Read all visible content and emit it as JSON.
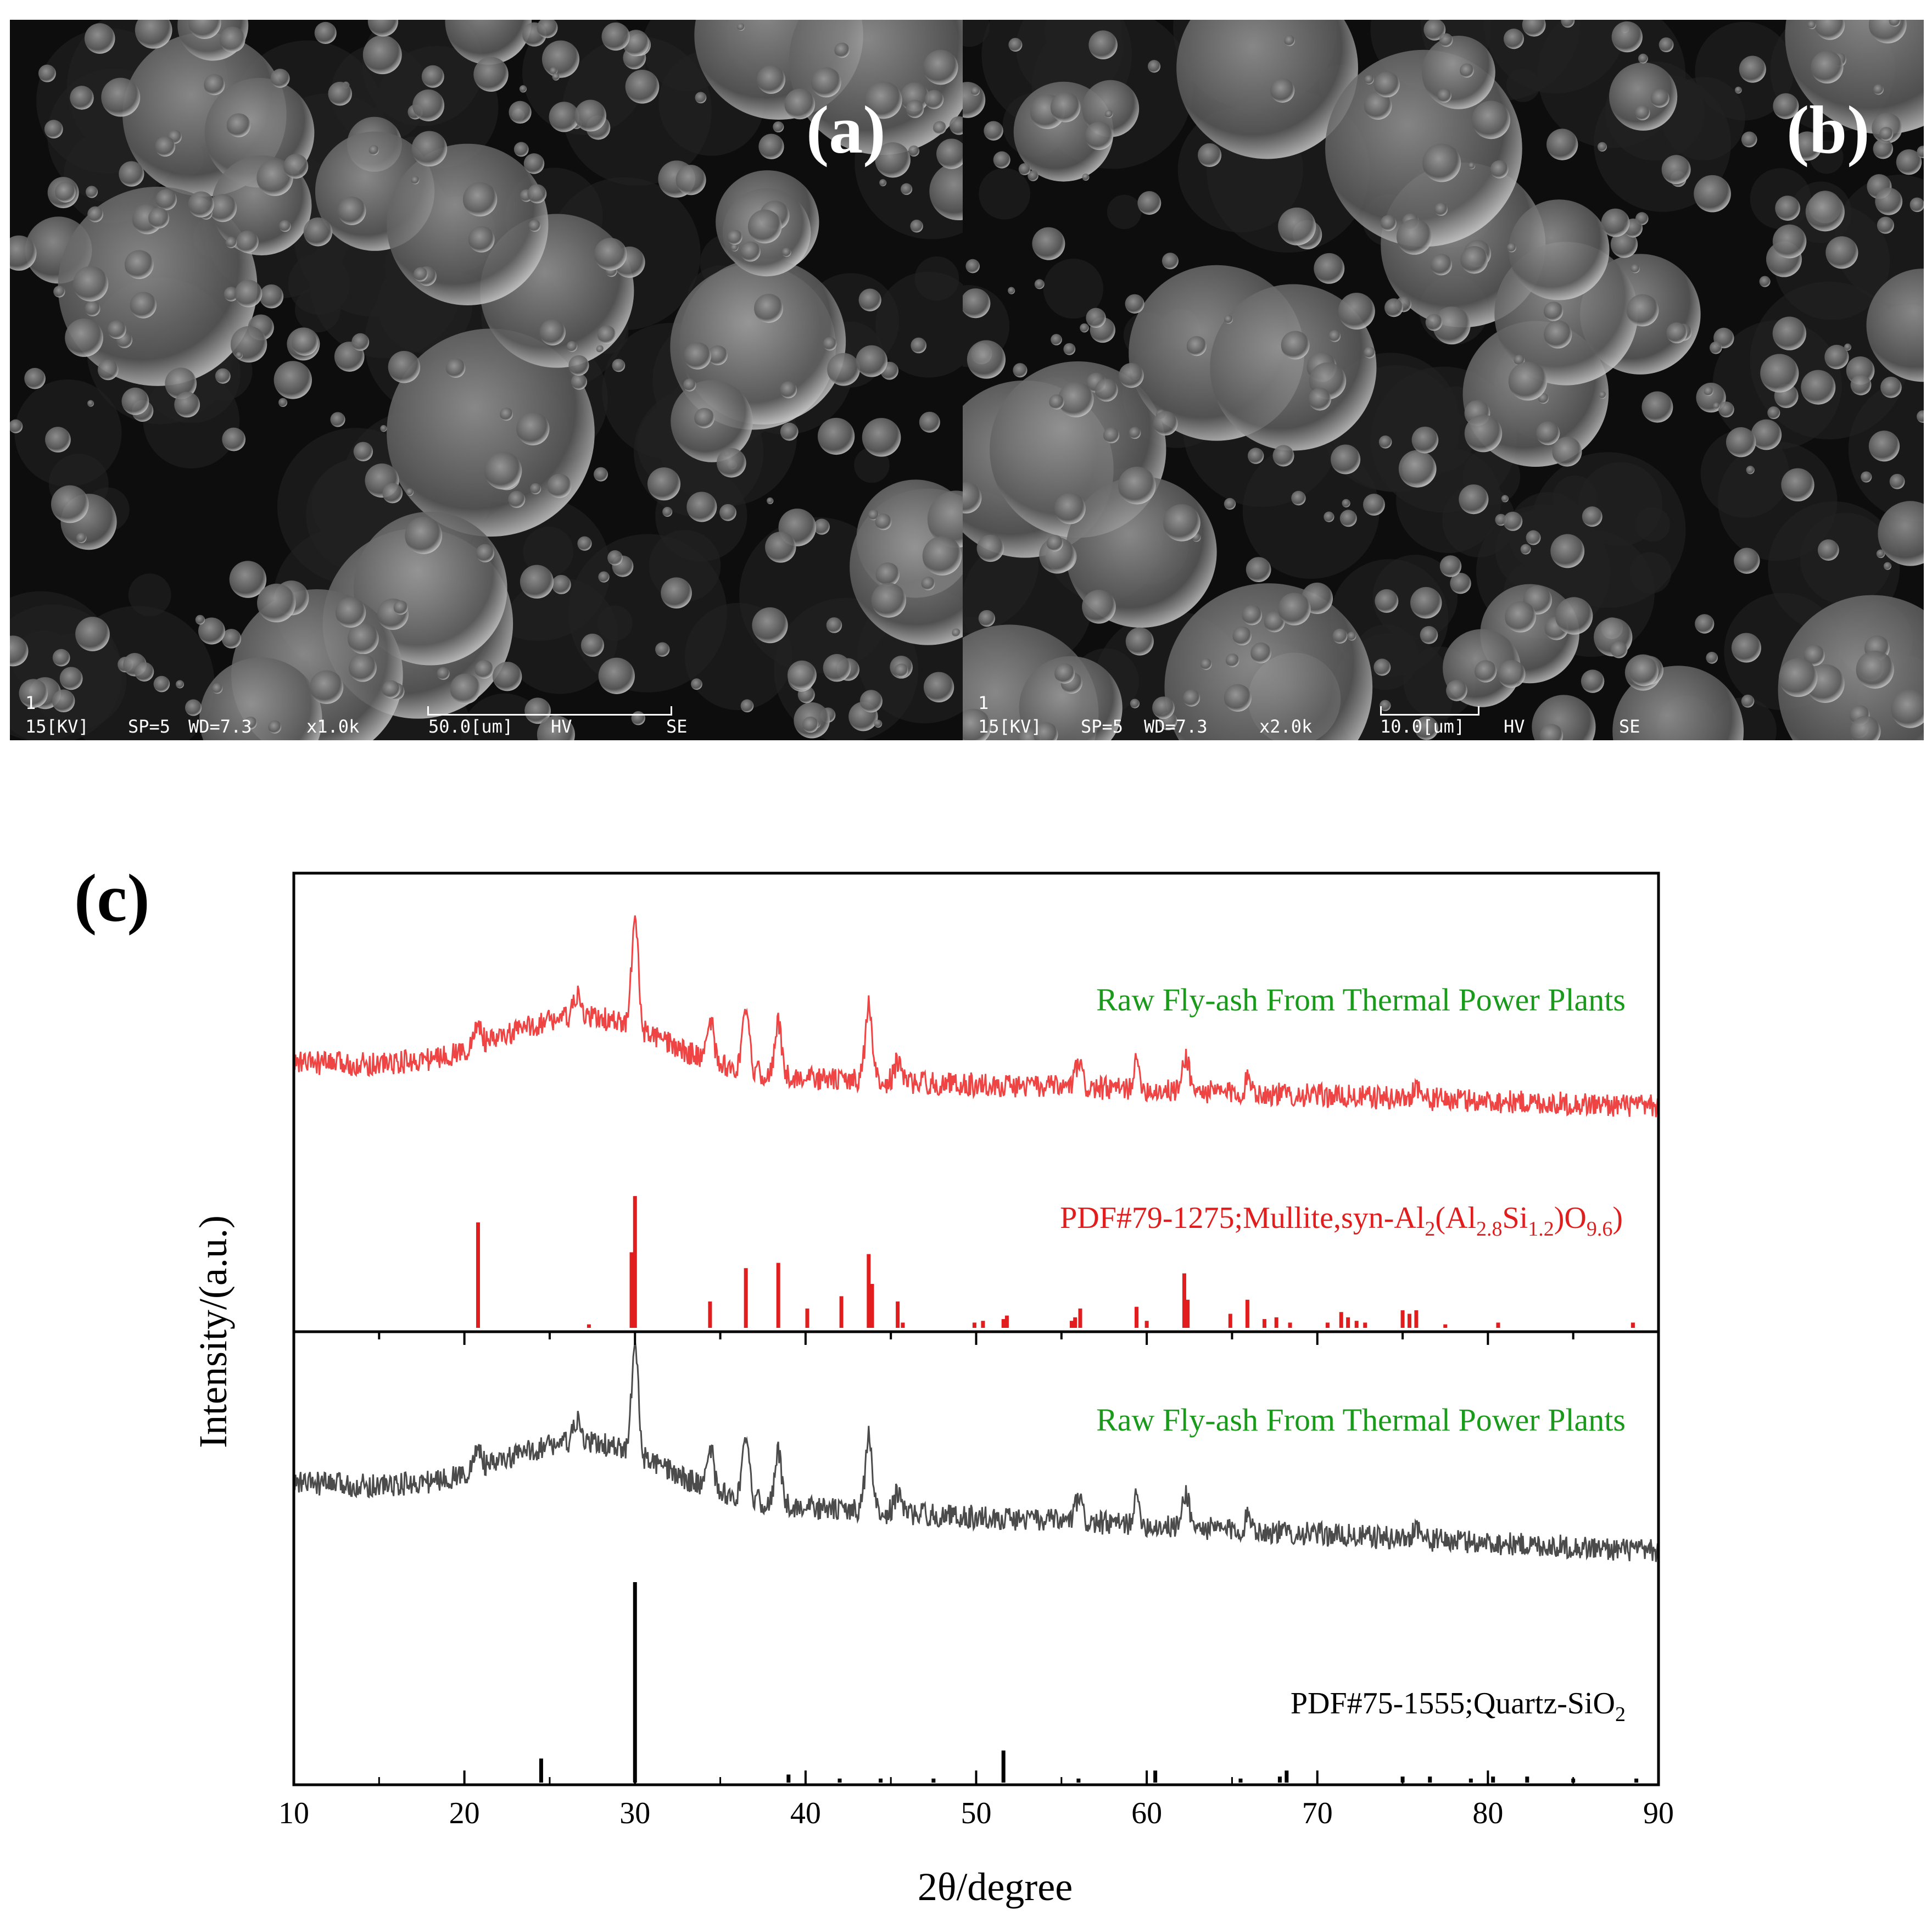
{
  "sem_panels": [
    {
      "label": "(a)",
      "index": "1",
      "voltage": "15[KV]",
      "spot": "SP=5",
      "wd": "WD=7.3",
      "mag": "x1.0k",
      "scale": "50.0[um]",
      "mode": "HV",
      "detector": "SE"
    },
    {
      "label": "(b)",
      "index": "1",
      "voltage": "15[KV]",
      "spot": "SP=5",
      "wd": "WD=7.3",
      "mag": "x2.0k",
      "scale": "10.0[um]",
      "mode": "HV",
      "detector": "SE"
    }
  ],
  "chart_label": "(c)",
  "chart_data": {
    "type": "line",
    "xlabel": "2θ/degree",
    "ylabel": "Intensity/(a.u.)",
    "xlim": [
      10,
      90
    ],
    "xticks": [
      10,
      20,
      30,
      40,
      50,
      60,
      70,
      80,
      90
    ],
    "upper_panel": {
      "pattern_label": "Raw Fly-ash From Thermal Power Plants",
      "pattern_color": "#ef4444",
      "pattern_peaks": [
        {
          "x": 20.8,
          "h": 0.12
        },
        {
          "x": 26.6,
          "h": 0.1
        },
        {
          "x": 30.0,
          "h": 0.55
        },
        {
          "x": 34.4,
          "h": 0.22
        },
        {
          "x": 36.5,
          "h": 0.28
        },
        {
          "x": 38.4,
          "h": 0.26
        },
        {
          "x": 43.7,
          "h": 0.38
        },
        {
          "x": 45.4,
          "h": 0.1
        },
        {
          "x": 56.0,
          "h": 0.12
        },
        {
          "x": 59.4,
          "h": 0.13
        },
        {
          "x": 62.3,
          "h": 0.18
        },
        {
          "x": 66.0,
          "h": 0.08
        },
        {
          "x": 75.8,
          "h": 0.07
        }
      ],
      "reference_label_parts": {
        "prefix": "PDF#79-1275;Mullite,syn-Al",
        "sub1": "2",
        "mid1": "(Al",
        "sub2": "2.8",
        "mid2": "Si",
        "sub3": "1.2",
        "mid3": ")O",
        "sub4": "9.6",
        "suffix": ")"
      },
      "reference_color": "#e11d1d",
      "reference_lines": [
        {
          "x": 20.8,
          "h": 0.6
        },
        {
          "x": 27.3,
          "h": 0.02
        },
        {
          "x": 29.8,
          "h": 0.43
        },
        {
          "x": 30.0,
          "h": 0.75
        },
        {
          "x": 34.4,
          "h": 0.15
        },
        {
          "x": 36.5,
          "h": 0.34
        },
        {
          "x": 38.4,
          "h": 0.37
        },
        {
          "x": 40.1,
          "h": 0.11
        },
        {
          "x": 42.1,
          "h": 0.18
        },
        {
          "x": 43.7,
          "h": 0.42
        },
        {
          "x": 43.9,
          "h": 0.25
        },
        {
          "x": 45.4,
          "h": 0.15
        },
        {
          "x": 45.7,
          "h": 0.03
        },
        {
          "x": 49.9,
          "h": 0.03
        },
        {
          "x": 50.4,
          "h": 0.04
        },
        {
          "x": 51.6,
          "h": 0.05
        },
        {
          "x": 51.8,
          "h": 0.07
        },
        {
          "x": 55.6,
          "h": 0.04
        },
        {
          "x": 55.8,
          "h": 0.06
        },
        {
          "x": 56.1,
          "h": 0.11
        },
        {
          "x": 59.4,
          "h": 0.12
        },
        {
          "x": 60.0,
          "h": 0.04
        },
        {
          "x": 62.2,
          "h": 0.31
        },
        {
          "x": 62.4,
          "h": 0.16
        },
        {
          "x": 64.9,
          "h": 0.08
        },
        {
          "x": 65.9,
          "h": 0.16
        },
        {
          "x": 66.9,
          "h": 0.05
        },
        {
          "x": 67.6,
          "h": 0.06
        },
        {
          "x": 68.4,
          "h": 0.03
        },
        {
          "x": 70.6,
          "h": 0.03
        },
        {
          "x": 71.4,
          "h": 0.09
        },
        {
          "x": 71.8,
          "h": 0.06
        },
        {
          "x": 72.3,
          "h": 0.04
        },
        {
          "x": 72.8,
          "h": 0.03
        },
        {
          "x": 75.0,
          "h": 0.1
        },
        {
          "x": 75.4,
          "h": 0.08
        },
        {
          "x": 75.8,
          "h": 0.1
        },
        {
          "x": 77.5,
          "h": 0.02
        },
        {
          "x": 80.6,
          "h": 0.03
        },
        {
          "x": 88.5,
          "h": 0.03
        }
      ]
    },
    "lower_panel": {
      "pattern_label": "Raw Fly-ash From Thermal Power Plants",
      "pattern_color": "#4b4b4b",
      "pattern_peaks": [
        {
          "x": 20.8,
          "h": 0.12
        },
        {
          "x": 26.6,
          "h": 0.1
        },
        {
          "x": 30.0,
          "h": 0.55
        },
        {
          "x": 34.4,
          "h": 0.22
        },
        {
          "x": 36.5,
          "h": 0.28
        },
        {
          "x": 38.4,
          "h": 0.26
        },
        {
          "x": 43.7,
          "h": 0.38
        },
        {
          "x": 45.4,
          "h": 0.1
        },
        {
          "x": 56.0,
          "h": 0.12
        },
        {
          "x": 59.4,
          "h": 0.13
        },
        {
          "x": 62.3,
          "h": 0.18
        },
        {
          "x": 66.0,
          "h": 0.08
        },
        {
          "x": 75.8,
          "h": 0.07
        }
      ],
      "reference_label_parts": {
        "prefix": "PDF#75-1555;Quartz-SiO",
        "sub1": "2"
      },
      "reference_color": "#000000",
      "reference_lines": [
        {
          "x": 24.5,
          "h": 0.12
        },
        {
          "x": 30.0,
          "h": 1.0
        },
        {
          "x": 39.0,
          "h": 0.04
        },
        {
          "x": 42.0,
          "h": 0.02
        },
        {
          "x": 44.4,
          "h": 0.02
        },
        {
          "x": 47.5,
          "h": 0.02
        },
        {
          "x": 51.6,
          "h": 0.16
        },
        {
          "x": 56.0,
          "h": 0.02
        },
        {
          "x": 60.5,
          "h": 0.06
        },
        {
          "x": 65.5,
          "h": 0.02
        },
        {
          "x": 67.8,
          "h": 0.03
        },
        {
          "x": 68.2,
          "h": 0.06
        },
        {
          "x": 75.0,
          "h": 0.03
        },
        {
          "x": 76.6,
          "h": 0.03
        },
        {
          "x": 79.0,
          "h": 0.02
        },
        {
          "x": 80.3,
          "h": 0.03
        },
        {
          "x": 82.3,
          "h": 0.03
        },
        {
          "x": 85.0,
          "h": 0.02
        },
        {
          "x": 88.7,
          "h": 0.02
        }
      ]
    }
  },
  "colors": {
    "label_green": "#1a9a1a",
    "sem_background": "#0a0a0a"
  }
}
